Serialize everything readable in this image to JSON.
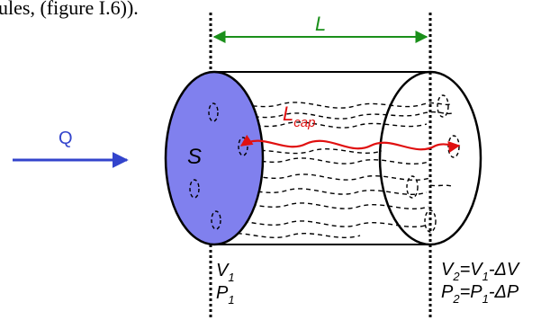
{
  "caption_fragment": "ules, (figure I.6)).",
  "labels": {
    "length": "L",
    "flow": "Q",
    "section": "S",
    "capillary_main": "L",
    "capillary_sub": "cap",
    "left_velocity_main": "V",
    "left_velocity_sub": "1",
    "left_pressure_main": "P",
    "left_pressure_sub": "1",
    "right_velocity": {
      "a": "V",
      "a_sub": "2",
      "eq": "=V",
      "b_sub": "1",
      "rest": "-ΔV"
    },
    "right_pressure": {
      "a": "P",
      "a_sub": "2",
      "eq": "=P",
      "b_sub": "1",
      "rest": "-ΔP"
    }
  },
  "colors": {
    "length_arrow": "#1a8f1a",
    "flow_arrow": "#3344cc",
    "section_face": "#8080ee",
    "capillary": "#e01010",
    "outline": "#000000"
  }
}
